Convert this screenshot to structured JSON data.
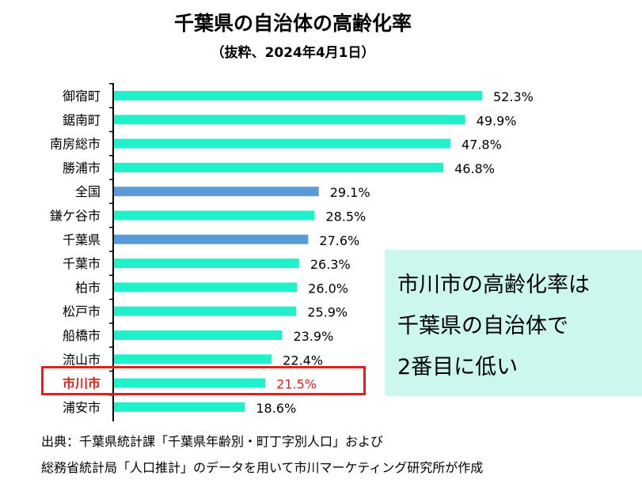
{
  "title": "千葉県の自治体の高齢化率",
  "subtitle": "（抜粋、2024年4月1日）",
  "chart_data": {
    "type": "bar",
    "orientation": "horizontal",
    "categories": [
      "御宿町",
      "鋸南町",
      "南房総市",
      "勝浦市",
      "全国",
      "鎌ケ谷市",
      "千葉県",
      "千葉市",
      "柏市",
      "松戸市",
      "船橋市",
      "流山市",
      "市川市",
      "浦安市"
    ],
    "values": [
      52.3,
      49.9,
      47.8,
      46.8,
      29.1,
      28.5,
      27.6,
      26.3,
      26.0,
      25.9,
      23.9,
      22.4,
      21.5,
      18.6
    ],
    "value_labels": [
      "52.3%",
      "49.9%",
      "47.8%",
      "46.8%",
      "29.1%",
      "28.5%",
      "27.6%",
      "26.3%",
      "26.0%",
      "25.9%",
      "23.9%",
      "22.4%",
      "21.5%",
      "18.6%"
    ],
    "bar_colors": [
      "#1ff2cb",
      "#1ff2cb",
      "#1ff2cb",
      "#1ff2cb",
      "#5b9bd5",
      "#1ff2cb",
      "#5b9bd5",
      "#1ff2cb",
      "#1ff2cb",
      "#1ff2cb",
      "#1ff2cb",
      "#1ff2cb",
      "#1ff2cb",
      "#1ff2cb"
    ],
    "highlight_category": "市川市",
    "highlight_color": "#e0201e",
    "xlim": [
      0,
      52.3
    ],
    "grid": false,
    "legend": "none"
  },
  "callout": {
    "lines": [
      "市川市の高齢化率は",
      "千葉県の自治体で",
      "2番目に低い"
    ],
    "background": "#ccf7ef"
  },
  "source": {
    "line1": "出典：千葉県統計課「千葉県年齢別・町丁字別人口」および",
    "line2": "総務省統計局「人口推計」のデータを用いて市川マーケティング研究所が作成"
  }
}
